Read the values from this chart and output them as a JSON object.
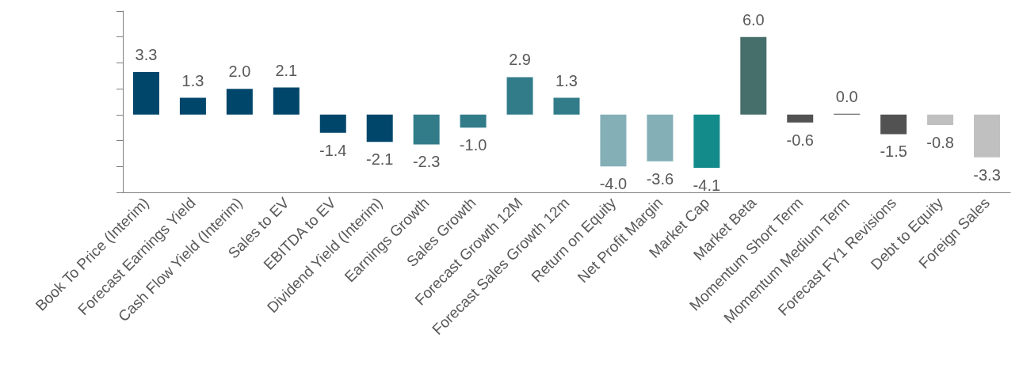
{
  "chart_data": {
    "type": "bar",
    "categories": [
      "Book To Price (Interim)",
      "Forecast Earnings Yield",
      "Cash Flow Yield (Interim)",
      "Sales to EV",
      "EBITDA to EV",
      "Dividend Yield (Interim)",
      "Earnings Growth",
      "Sales Growth",
      "Forecast Growth 12M",
      "Forecast Sales Growth 12m",
      "Return on Equity",
      "Net Profit Margin",
      "Market Cap",
      "Market Beta",
      "Momentum Short Term",
      "Momentum Medium Term",
      "Forecast FY1 Revisions",
      "Debt to Equity",
      "Foreign Sales"
    ],
    "values": [
      3.3,
      1.3,
      2.0,
      2.1,
      -1.4,
      -2.1,
      -2.3,
      -1.0,
      2.9,
      1.3,
      -4.0,
      -3.6,
      -4.1,
      6.0,
      -0.6,
      0.0,
      -1.5,
      -0.8,
      -3.3
    ],
    "value_labels": [
      "3.3",
      "1.3",
      "2.0",
      "2.1",
      "-1.4",
      "-2.1",
      "-2.3",
      "-1.0",
      "2.9",
      "1.3",
      "-4.0",
      "-3.6",
      "-4.1",
      "6.0",
      "-0.6",
      "0.0",
      "-1.5",
      "-0.8",
      "-3.3"
    ],
    "colors": [
      "#00466b",
      "#00466b",
      "#00466b",
      "#00466b",
      "#00466b",
      "#00466b",
      "#327c8a",
      "#327c8a",
      "#327c8a",
      "#327c8a",
      "#84afb7",
      "#84afb7",
      "#148b8b",
      "#466e6b",
      "#525252",
      "#525252",
      "#525252",
      "#c0c0c0",
      "#c0c0c0"
    ],
    "ylim": [
      -6,
      8
    ],
    "yticks": [
      {
        "value": -6,
        "label": null
      },
      {
        "value": -4,
        "label": null
      },
      {
        "value": -2,
        "label": null
      },
      {
        "value": 0,
        "label": null
      },
      {
        "value": 2,
        "label": null
      },
      {
        "value": 4,
        "label": null
      },
      {
        "value": 6,
        "label": null
      },
      {
        "value": 8,
        "label": null
      }
    ],
    "tick_labels": "x",
    "grid": false
  }
}
